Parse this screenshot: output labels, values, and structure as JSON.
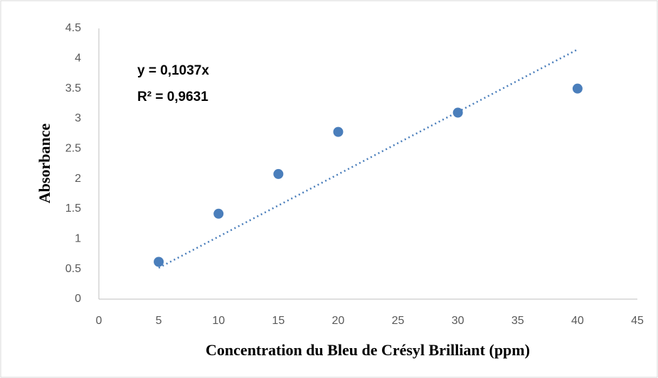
{
  "chart_data": {
    "type": "scatter",
    "x_label": "Concentration du Bleu de Crésyl Brilliant (ppm)",
    "y_label": "Absorbance",
    "annotations": [
      "y = 0,1037x",
      "R² = 0,9631"
    ],
    "series": [
      {
        "x": [
          5,
          10,
          15,
          20,
          30,
          40
        ],
        "values": [
          0.62,
          1.42,
          2.08,
          2.78,
          3.1,
          3.5
        ],
        "color": "#4a7ebb"
      }
    ],
    "trendline": {
      "x": [
        5,
        40
      ],
      "values": [
        0.52,
        4.15
      ],
      "color": "#4a7ebb"
    },
    "xlim": [
      0,
      45
    ],
    "xticks": [
      0,
      5,
      10,
      15,
      20,
      25,
      30,
      35,
      40,
      45
    ],
    "ylim": [
      0,
      4.5
    ],
    "yticks": [
      0,
      0.5,
      1,
      1.5,
      2,
      2.5,
      3,
      3.5,
      4,
      4.5
    ],
    "grid": false
  }
}
